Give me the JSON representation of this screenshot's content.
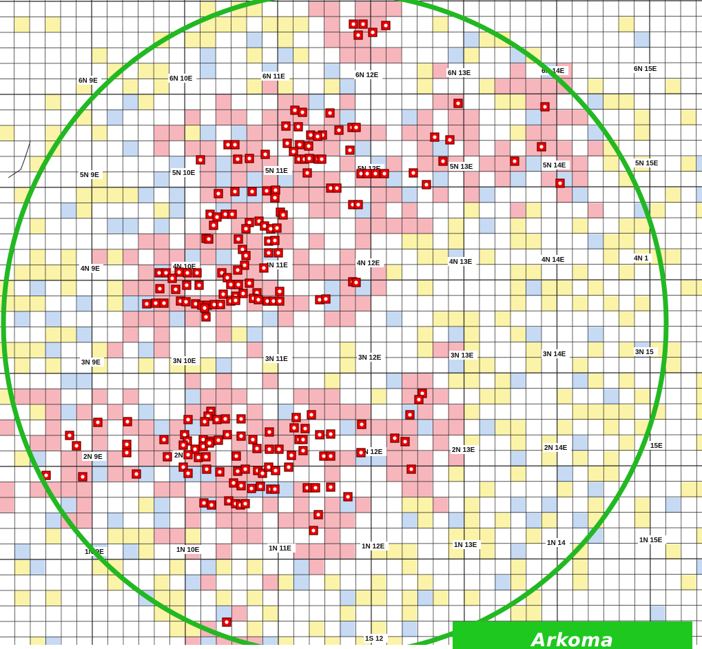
{
  "map": {
    "colors": {
      "background": "#ffffff",
      "grid_line": "#222222",
      "quad_yellow": "#fbf3a8",
      "quad_blue": "#c6daf4",
      "quad_pink": "#f6b6bc",
      "highlight_circle": "#22b822",
      "well_fill": "#ee0000",
      "well_stroke": "#6b0000"
    },
    "township_labels": [
      "6N 9E",
      "6N 10E",
      "6N 11E",
      "6N 12E",
      "6N 13E",
      "6N 14E",
      "6N 15E",
      "5N 9E",
      "5N 10E",
      "5N 11E",
      "5N 12E",
      "5N 13E",
      "5N 14E",
      "5N 15E",
      "4N 9E",
      "4N 10E",
      "4N 11E",
      "4N 12E",
      "4N 13E",
      "4N 14E",
      "4N 1",
      "3N 9E",
      "3N 10E",
      "3N 11E",
      "3N 12E",
      "3N 13E",
      "3N 14E",
      "3N 15",
      "2N 9E",
      "2N 1",
      "2N 12E",
      "2N 13E",
      "2N 14E",
      "15E",
      "1N 9E",
      "1N 10E",
      "1N 11E",
      "1N 12E",
      "1N 13E",
      "1N 14",
      "1N 15E",
      "1S 12"
    ],
    "legend": {
      "label": "Arkoma"
    }
  }
}
